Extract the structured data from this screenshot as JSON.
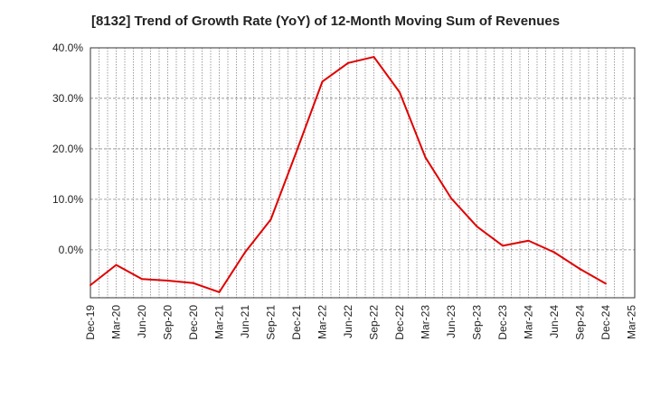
{
  "chart_data": {
    "type": "line",
    "title": "[8132]  Trend of Growth Rate (YoY) of 12-Month Moving Sum of Revenues",
    "xlabel": "",
    "ylabel": "",
    "ylim": [
      -9.5,
      40
    ],
    "grid": true,
    "y_ticks": [
      {
        "value": 40,
        "label": "40.0%"
      },
      {
        "value": 30,
        "label": "30.0%"
      },
      {
        "value": 20,
        "label": "20.0%"
      },
      {
        "value": 10,
        "label": "10.0%"
      },
      {
        "value": 0,
        "label": "0.0%"
      }
    ],
    "x_ticks": [
      "Dec-19",
      "Mar-20",
      "Jun-20",
      "Sep-20",
      "Dec-20",
      "Mar-21",
      "Jun-21",
      "Sep-21",
      "Dec-21",
      "Mar-22",
      "Jun-22",
      "Sep-22",
      "Dec-22",
      "Mar-23",
      "Jun-23",
      "Sep-23",
      "Dec-23",
      "Mar-24",
      "Jun-24",
      "Sep-24",
      "Dec-24",
      "Mar-25"
    ],
    "series": [
      {
        "color": "#e00000",
        "x": [
          "Dec-19",
          "Mar-20",
          "Jun-20",
          "Sep-20",
          "Dec-20",
          "Mar-21",
          "Jun-21",
          "Sep-21",
          "Dec-21",
          "Mar-22",
          "Jun-22",
          "Sep-22",
          "Dec-22",
          "Mar-23",
          "Jun-23",
          "Sep-23",
          "Dec-23",
          "Mar-24",
          "Jun-24",
          "Sep-24",
          "Dec-24"
        ],
        "values": [
          -7.0,
          -3.0,
          -5.8,
          -6.1,
          -6.6,
          -8.4,
          -0.5,
          6.0,
          19.5,
          33.3,
          37.0,
          38.2,
          31.2,
          18.3,
          10.2,
          4.6,
          0.8,
          1.8,
          -0.5,
          -3.8,
          -6.7
        ]
      }
    ]
  }
}
